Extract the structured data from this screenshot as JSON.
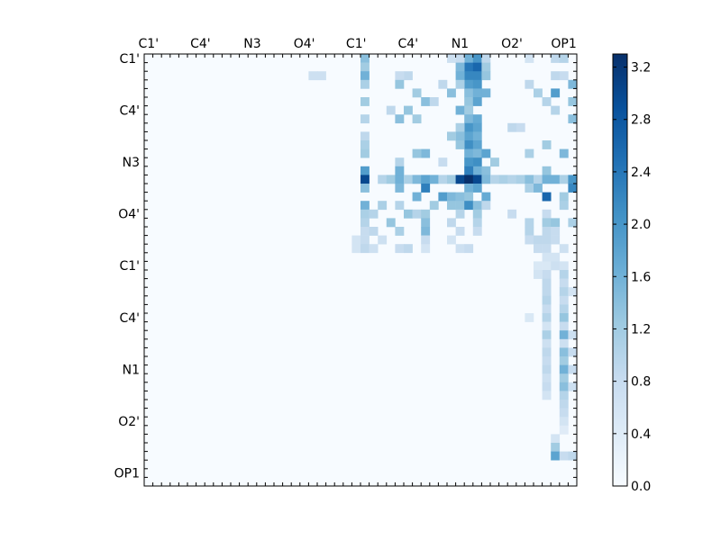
{
  "chart_data": {
    "type": "heatmap",
    "title": "",
    "xlabel": "",
    "ylabel": "",
    "x_tick_labels": [
      "C1'",
      "C4'",
      "N3",
      "O4'",
      "C1'",
      "C4'",
      "N1",
      "O2'",
      "OP1"
    ],
    "y_tick_labels": [
      "C1'",
      "C4'",
      "N3",
      "O4'",
      "C1'",
      "C4'",
      "N1",
      "O2'",
      "OP1"
    ],
    "matrix_size": 50,
    "tick_every": 6,
    "colormap": "Blues",
    "colorbar": {
      "vmin": 0.0,
      "vmax": 3.3,
      "ticks": [
        "0.0",
        "0.4",
        "0.8",
        "1.2",
        "1.6",
        "2.0",
        "2.4",
        "2.8",
        "3.2"
      ],
      "tick_values": [
        0.0,
        0.4,
        0.8,
        1.2,
        1.6,
        2.0,
        2.4,
        2.8,
        3.2
      ],
      "position": "right"
    },
    "cells": [
      [
        0,
        25,
        1.4
      ],
      [
        0,
        37,
        1.6
      ],
      [
        0,
        38,
        2.0
      ],
      [
        0,
        36,
        0.8
      ],
      [
        0,
        39,
        0.9
      ],
      [
        0,
        47,
        0.9
      ],
      [
        0,
        48,
        1.0
      ],
      [
        0,
        44,
        0.6
      ],
      [
        0,
        35,
        0.7
      ],
      [
        1,
        25,
        1.2
      ],
      [
        1,
        37,
        2.4
      ],
      [
        1,
        38,
        2.6
      ],
      [
        1,
        36,
        1.5
      ],
      [
        1,
        39,
        1.2
      ],
      [
        2,
        25,
        1.6
      ],
      [
        2,
        37,
        2.2
      ],
      [
        2,
        38,
        2.2
      ],
      [
        2,
        36,
        1.6
      ],
      [
        2,
        39,
        1.3
      ],
      [
        2,
        30,
        0.9
      ],
      [
        2,
        29,
        0.8
      ],
      [
        2,
        20,
        0.7
      ],
      [
        2,
        19,
        0.7
      ],
      [
        2,
        47,
        0.9
      ],
      [
        2,
        48,
        0.8
      ],
      [
        3,
        25,
        1.1
      ],
      [
        3,
        37,
        1.9
      ],
      [
        3,
        38,
        2.0
      ],
      [
        3,
        29,
        1.3
      ],
      [
        3,
        34,
        0.9
      ],
      [
        3,
        36,
        1.1
      ],
      [
        3,
        49,
        1.5
      ],
      [
        3,
        44,
        0.9
      ],
      [
        4,
        37,
        1.4
      ],
      [
        4,
        38,
        1.6
      ],
      [
        4,
        31,
        1.2
      ],
      [
        4,
        35,
        1.4
      ],
      [
        4,
        39,
        1.6
      ],
      [
        4,
        47,
        1.9
      ],
      [
        4,
        45,
        1.1
      ],
      [
        5,
        25,
        1.2
      ],
      [
        5,
        37,
        1.3
      ],
      [
        5,
        38,
        1.8
      ],
      [
        5,
        32,
        1.4
      ],
      [
        5,
        33,
        0.9
      ],
      [
        5,
        49,
        1.3
      ],
      [
        5,
        46,
        1.0
      ],
      [
        6,
        36,
        1.6
      ],
      [
        6,
        37,
        1.2
      ],
      [
        6,
        30,
        1.3
      ],
      [
        6,
        28,
        0.9
      ],
      [
        6,
        47,
        1.0
      ],
      [
        7,
        25,
        1.0
      ],
      [
        7,
        37,
        1.5
      ],
      [
        7,
        38,
        1.7
      ],
      [
        7,
        29,
        1.4
      ],
      [
        7,
        31,
        1.2
      ],
      [
        7,
        49,
        1.4
      ],
      [
        8,
        37,
        2.0
      ],
      [
        8,
        38,
        1.8
      ],
      [
        8,
        36,
        1.1
      ],
      [
        8,
        42,
        0.9
      ],
      [
        8,
        43,
        0.8
      ],
      [
        9,
        37,
        1.8
      ],
      [
        9,
        38,
        1.6
      ],
      [
        9,
        36,
        1.4
      ],
      [
        9,
        35,
        1.2
      ],
      [
        9,
        25,
        0.9
      ],
      [
        10,
        25,
        1.1
      ],
      [
        10,
        37,
        2.1
      ],
      [
        10,
        38,
        1.8
      ],
      [
        10,
        36,
        1.3
      ],
      [
        10,
        46,
        1.2
      ],
      [
        11,
        37,
        1.6
      ],
      [
        11,
        38,
        1.5
      ],
      [
        11,
        39,
        1.8
      ],
      [
        11,
        32,
        1.5
      ],
      [
        11,
        31,
        1.3
      ],
      [
        11,
        44,
        1.1
      ],
      [
        11,
        48,
        1.5
      ],
      [
        11,
        25,
        1.2
      ],
      [
        12,
        38,
        2.1
      ],
      [
        12,
        37,
        2.0
      ],
      [
        12,
        40,
        1.2
      ],
      [
        12,
        29,
        1.0
      ],
      [
        12,
        34,
        0.8
      ],
      [
        13,
        25,
        1.9
      ],
      [
        13,
        38,
        1.6
      ],
      [
        13,
        37,
        2.3
      ],
      [
        13,
        29,
        1.6
      ],
      [
        13,
        39,
        1.4
      ],
      [
        13,
        46,
        1.3
      ],
      [
        14,
        25,
        3.0
      ],
      [
        14,
        27,
        1.0
      ],
      [
        14,
        28,
        1.2
      ],
      [
        14,
        29,
        1.6
      ],
      [
        14,
        30,
        1.1
      ],
      [
        14,
        31,
        1.5
      ],
      [
        14,
        32,
        1.8
      ],
      [
        14,
        33,
        1.6
      ],
      [
        14,
        34,
        1.0
      ],
      [
        14,
        35,
        1.2
      ],
      [
        14,
        36,
        3.0
      ],
      [
        14,
        37,
        3.3
      ],
      [
        14,
        38,
        3.0
      ],
      [
        14,
        39,
        1.5
      ],
      [
        14,
        40,
        1.0
      ],
      [
        14,
        41,
        1.1
      ],
      [
        14,
        42,
        1.0
      ],
      [
        14,
        43,
        1.1
      ],
      [
        14,
        44,
        1.4
      ],
      [
        14,
        45,
        1.0
      ],
      [
        14,
        46,
        1.6
      ],
      [
        14,
        47,
        1.6
      ],
      [
        14,
        48,
        1.1
      ],
      [
        14,
        49,
        2.0
      ],
      [
        15,
        25,
        1.4
      ],
      [
        15,
        29,
        1.5
      ],
      [
        15,
        32,
        2.3
      ],
      [
        15,
        38,
        1.8
      ],
      [
        15,
        37,
        1.6
      ],
      [
        15,
        44,
        1.1
      ],
      [
        15,
        45,
        1.5
      ],
      [
        15,
        49,
        2.2
      ],
      [
        16,
        31,
        1.6
      ],
      [
        16,
        34,
        1.9
      ],
      [
        16,
        35,
        1.5
      ],
      [
        16,
        36,
        1.4
      ],
      [
        16,
        37,
        1.3
      ],
      [
        16,
        39,
        1.7
      ],
      [
        16,
        46,
        2.6
      ],
      [
        16,
        48,
        1.2
      ],
      [
        17,
        25,
        1.6
      ],
      [
        17,
        27,
        1.1
      ],
      [
        17,
        29,
        1.0
      ],
      [
        17,
        33,
        1.2
      ],
      [
        17,
        35,
        1.3
      ],
      [
        17,
        36,
        1.3
      ],
      [
        17,
        37,
        2.1
      ],
      [
        17,
        38,
        1.4
      ],
      [
        17,
        39,
        0.9
      ],
      [
        17,
        48,
        1.1
      ],
      [
        18,
        25,
        1.1
      ],
      [
        18,
        26,
        1.0
      ],
      [
        18,
        30,
        1.3
      ],
      [
        18,
        31,
        1.0
      ],
      [
        18,
        32,
        1.2
      ],
      [
        18,
        36,
        1.0
      ],
      [
        18,
        38,
        1.2
      ],
      [
        18,
        42,
        0.8
      ],
      [
        18,
        46,
        0.8
      ],
      [
        19,
        25,
        1.0
      ],
      [
        19,
        28,
        1.3
      ],
      [
        19,
        32,
        1.4
      ],
      [
        19,
        35,
        0.9
      ],
      [
        19,
        38,
        1.0
      ],
      [
        19,
        46,
        1.2
      ],
      [
        19,
        47,
        1.3
      ],
      [
        19,
        44,
        1.0
      ],
      [
        19,
        49,
        1.1
      ],
      [
        20,
        25,
        0.8
      ],
      [
        20,
        26,
        0.9
      ],
      [
        20,
        29,
        1.1
      ],
      [
        20,
        32,
        1.5
      ],
      [
        20,
        36,
        0.8
      ],
      [
        20,
        38,
        0.8
      ],
      [
        20,
        44,
        1.0
      ],
      [
        20,
        46,
        0.9
      ],
      [
        20,
        47,
        0.8
      ],
      [
        21,
        24,
        0.6
      ],
      [
        21,
        25,
        0.8
      ],
      [
        21,
        27,
        0.7
      ],
      [
        21,
        32,
        0.8
      ],
      [
        21,
        35,
        0.6
      ],
      [
        21,
        44,
        0.8
      ],
      [
        21,
        45,
        0.9
      ],
      [
        21,
        46,
        0.9
      ],
      [
        21,
        47,
        0.8
      ],
      [
        22,
        24,
        0.6
      ],
      [
        22,
        25,
        0.9
      ],
      [
        22,
        26,
        0.7
      ],
      [
        22,
        29,
        0.8
      ],
      [
        22,
        30,
        0.9
      ],
      [
        22,
        32,
        0.6
      ],
      [
        22,
        36,
        0.7
      ],
      [
        22,
        37,
        0.8
      ],
      [
        22,
        45,
        0.8
      ],
      [
        22,
        46,
        0.8
      ],
      [
        22,
        48,
        0.7
      ],
      [
        23,
        46,
        0.6
      ],
      [
        23,
        47,
        0.6
      ],
      [
        24,
        45,
        0.5
      ],
      [
        24,
        46,
        0.5
      ],
      [
        24,
        47,
        0.7
      ],
      [
        24,
        48,
        0.6
      ],
      [
        25,
        46,
        0.8
      ],
      [
        25,
        48,
        1.0
      ],
      [
        25,
        45,
        0.6
      ],
      [
        26,
        46,
        0.9
      ],
      [
        26,
        48,
        0.8
      ],
      [
        27,
        46,
        0.9
      ],
      [
        27,
        48,
        1.0
      ],
      [
        27,
        49,
        0.6
      ],
      [
        28,
        46,
        1.0
      ],
      [
        28,
        48,
        0.8
      ],
      [
        29,
        46,
        0.8
      ],
      [
        29,
        48,
        1.0
      ],
      [
        30,
        44,
        0.5
      ],
      [
        30,
        46,
        1.0
      ],
      [
        30,
        48,
        1.3
      ],
      [
        31,
        46,
        0.6
      ],
      [
        31,
        48,
        0.8
      ],
      [
        32,
        46,
        1.1
      ],
      [
        32,
        48,
        1.6
      ],
      [
        32,
        49,
        0.7
      ],
      [
        33,
        46,
        0.7
      ],
      [
        33,
        48,
        0.7
      ],
      [
        34,
        46,
        0.9
      ],
      [
        34,
        48,
        1.4
      ],
      [
        34,
        49,
        0.8
      ],
      [
        35,
        46,
        0.8
      ],
      [
        35,
        48,
        1.2
      ],
      [
        36,
        46,
        0.9
      ],
      [
        36,
        48,
        1.6
      ],
      [
        36,
        49,
        0.8
      ],
      [
        37,
        46,
        0.7
      ],
      [
        37,
        48,
        1.2
      ],
      [
        38,
        46,
        0.8
      ],
      [
        38,
        48,
        1.4
      ],
      [
        38,
        49,
        0.7
      ],
      [
        39,
        46,
        0.6
      ],
      [
        39,
        48,
        1.0
      ],
      [
        40,
        48,
        0.9
      ],
      [
        41,
        48,
        0.8
      ],
      [
        42,
        48,
        0.6
      ],
      [
        43,
        48,
        0.4
      ],
      [
        44,
        47,
        0.6
      ],
      [
        45,
        47,
        1.2
      ],
      [
        46,
        47,
        1.8
      ],
      [
        46,
        48,
        0.8
      ],
      [
        46,
        49,
        0.9
      ]
    ]
  }
}
